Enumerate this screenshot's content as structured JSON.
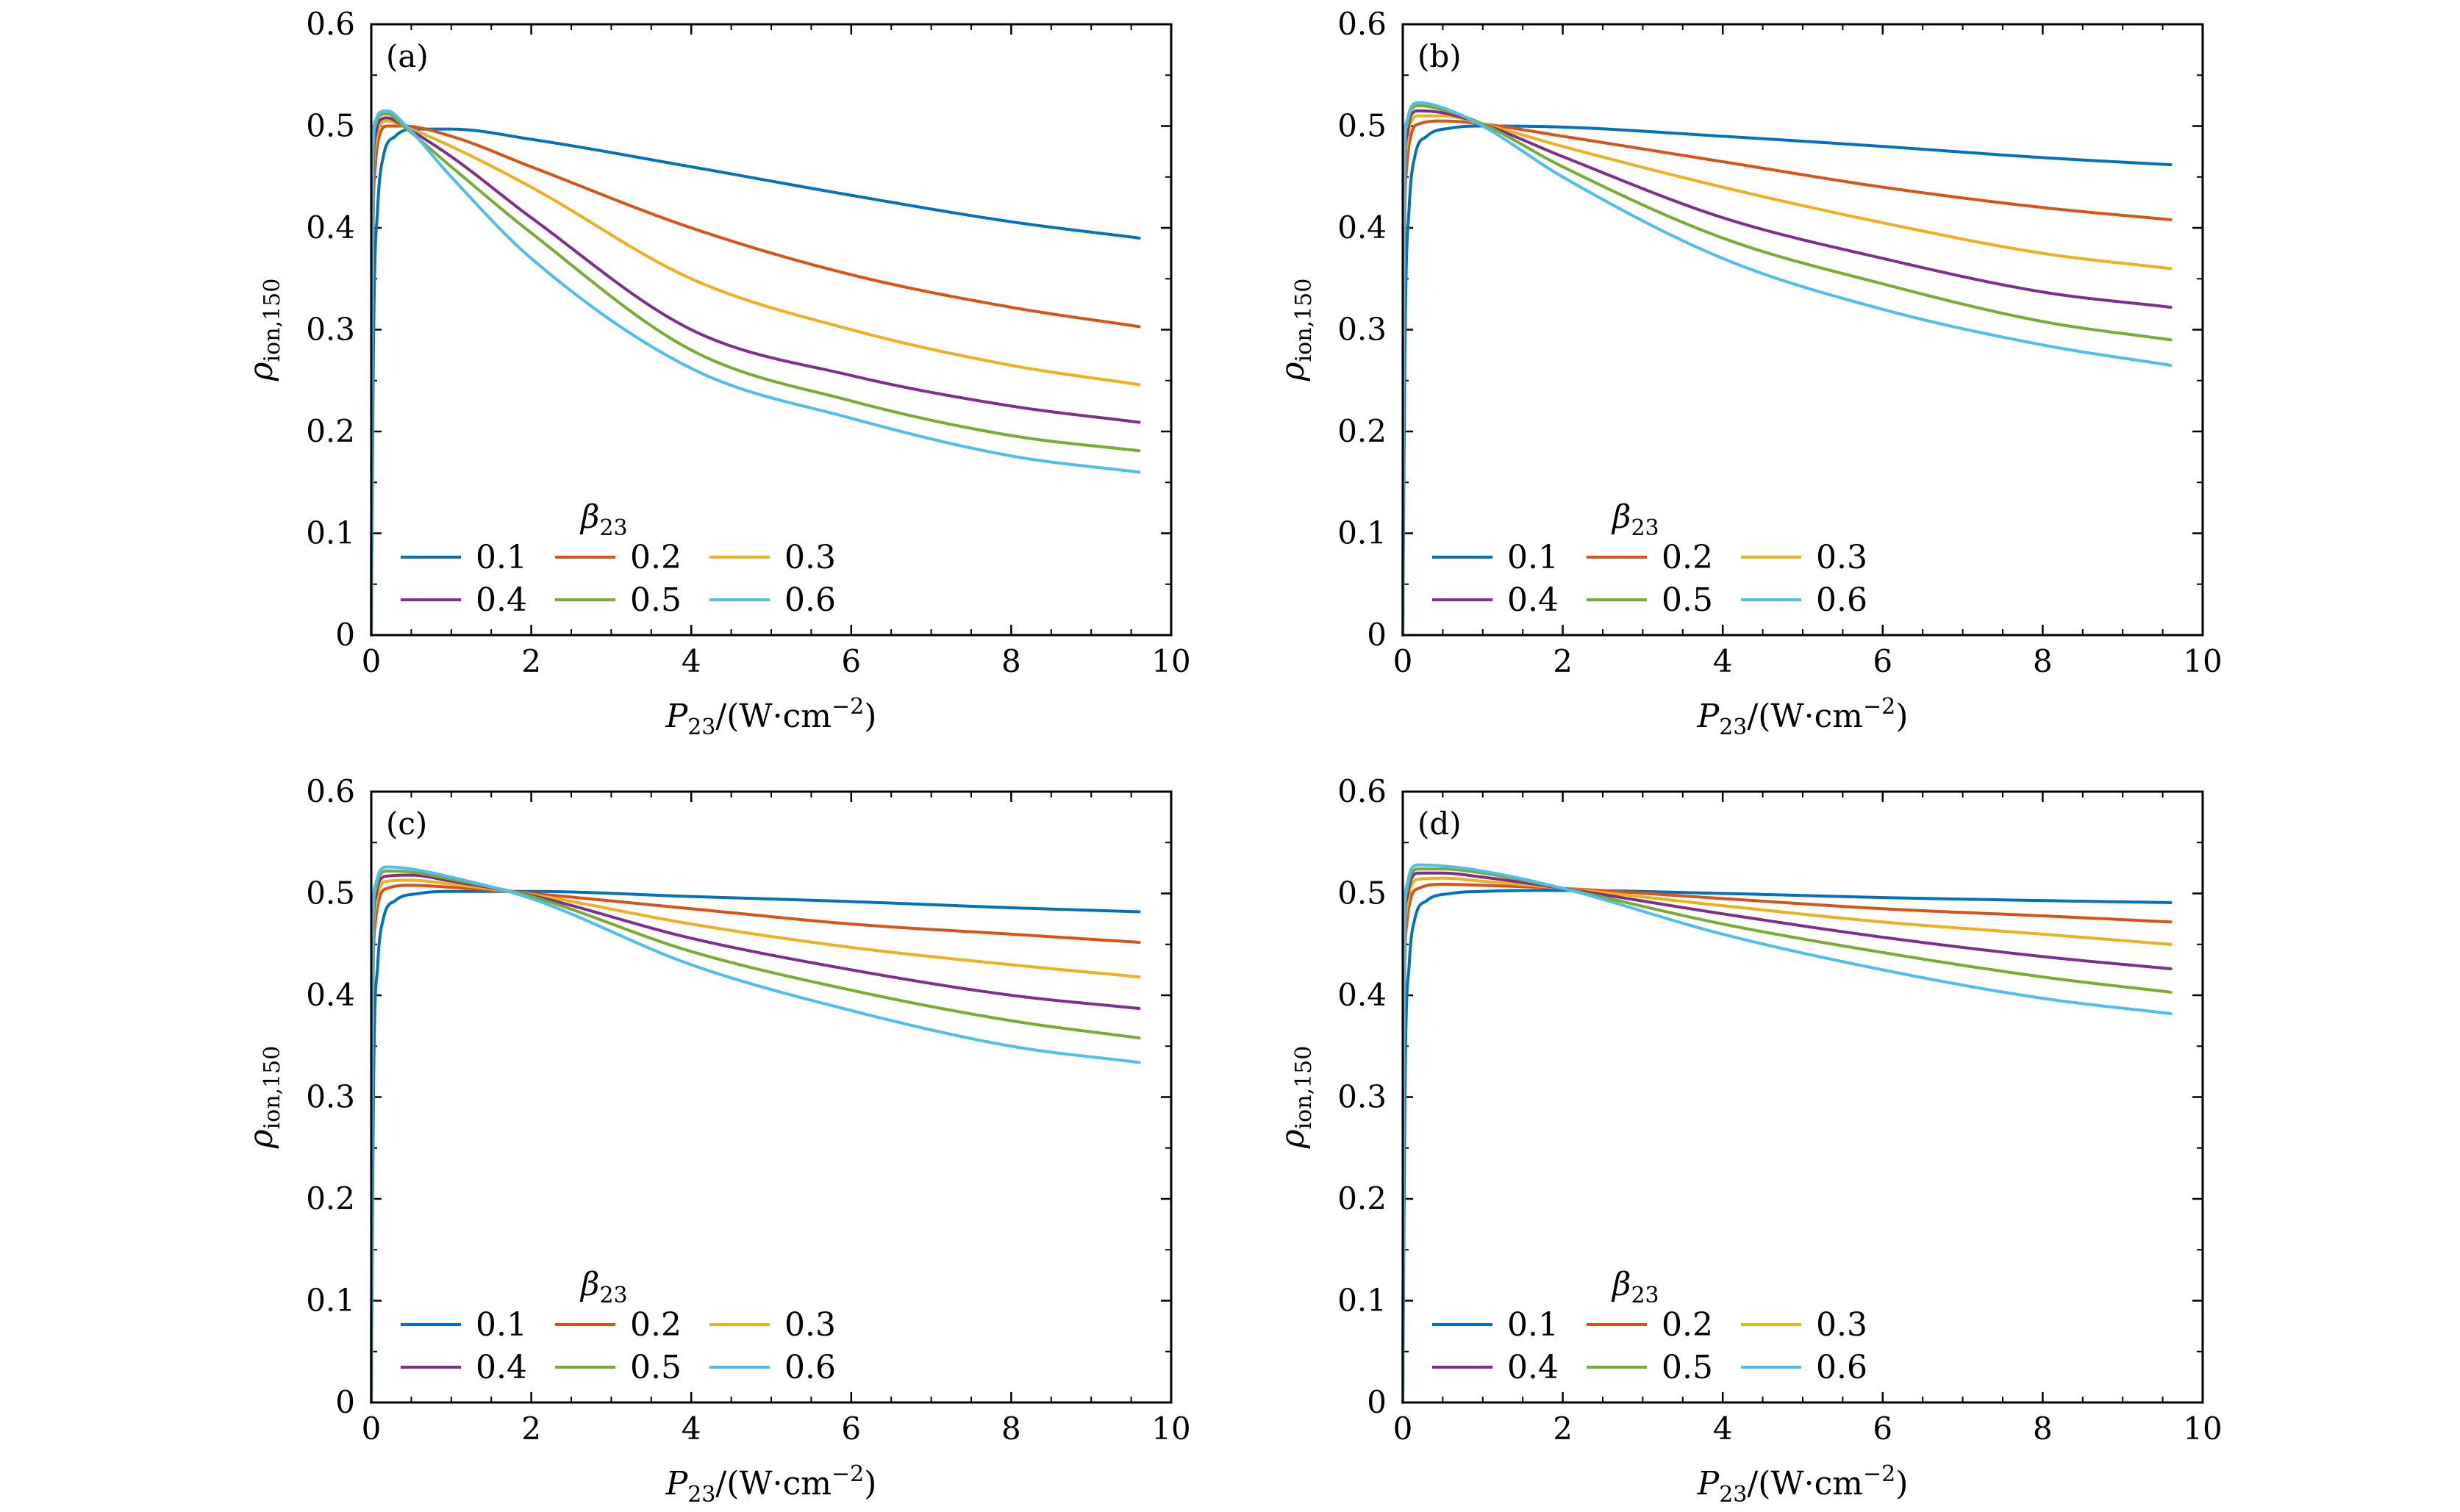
{
  "chart_data": [
    {
      "type": "line",
      "panel_label": "(a)",
      "xlabel": {
        "main": "P",
        "sub": "23",
        "rest": "/(W·cm",
        "sup": "−2",
        "close": ")"
      },
      "ylabel": {
        "main": "ρ",
        "sub": "ion,150"
      },
      "xlim": [
        0,
        10
      ],
      "ylim": [
        0,
        0.6
      ],
      "xticks": [
        0,
        2,
        4,
        6,
        8,
        10
      ],
      "xtick_labels": [
        "0",
        "2",
        "4",
        "6",
        "8",
        "10"
      ],
      "yticks": [
        0,
        0.1,
        0.2,
        0.3,
        0.4,
        0.5,
        0.6
      ],
      "ytick_labels": [
        "0",
        "0.1",
        "0.2",
        "0.3",
        "0.4",
        "0.5",
        "0.6"
      ],
      "legend": {
        "title": "β23",
        "placement": "lower-left"
      },
      "series": [
        {
          "name": "0.1",
          "color": "#0072BD",
          "x": [
            0,
            0.03,
            0.08,
            0.15,
            0.3,
            0.5,
            1,
            2,
            4,
            6,
            8,
            9.6
          ],
          "y": [
            0,
            0.3,
            0.42,
            0.47,
            0.49,
            0.497,
            0.497,
            0.487,
            0.46,
            0.432,
            0.406,
            0.39
          ]
        },
        {
          "name": "0.2",
          "color": "#D95319",
          "x": [
            0,
            0.02,
            0.05,
            0.1,
            0.2,
            0.4,
            1,
            2,
            4,
            6,
            8,
            9.6
          ],
          "y": [
            0,
            0.38,
            0.46,
            0.49,
            0.5,
            0.5,
            0.49,
            0.46,
            0.4,
            0.354,
            0.322,
            0.303
          ]
        },
        {
          "name": "0.3",
          "color": "#EDB120",
          "x": [
            0,
            0.02,
            0.05,
            0.1,
            0.2,
            0.4,
            1,
            2,
            4,
            6,
            8,
            9.6
          ],
          "y": [
            0,
            0.42,
            0.48,
            0.5,
            0.505,
            0.5,
            0.48,
            0.44,
            0.35,
            0.3,
            0.265,
            0.246
          ]
        },
        {
          "name": "0.4",
          "color": "#7E2F8E",
          "x": [
            0,
            0.02,
            0.05,
            0.1,
            0.2,
            0.4,
            1,
            2,
            4,
            6,
            8,
            9.6
          ],
          "y": [
            0,
            0.44,
            0.49,
            0.505,
            0.508,
            0.5,
            0.47,
            0.41,
            0.3,
            0.255,
            0.225,
            0.209
          ]
        },
        {
          "name": "0.5",
          "color": "#77AC30",
          "x": [
            0,
            0.02,
            0.05,
            0.1,
            0.2,
            0.4,
            1,
            2,
            4,
            6,
            8,
            9.6
          ],
          "y": [
            0,
            0.46,
            0.5,
            0.51,
            0.512,
            0.5,
            0.46,
            0.395,
            0.28,
            0.23,
            0.196,
            0.181
          ]
        },
        {
          "name": "0.6",
          "color": "#4DBEEE",
          "x": [
            0,
            0.02,
            0.05,
            0.1,
            0.2,
            0.4,
            1,
            2,
            4,
            6,
            8,
            9.6
          ],
          "y": [
            0,
            0.47,
            0.505,
            0.513,
            0.515,
            0.503,
            0.45,
            0.37,
            0.262,
            0.213,
            0.176,
            0.16
          ]
        }
      ]
    },
    {
      "type": "line",
      "panel_label": "(b)",
      "xlabel": {
        "main": "P",
        "sub": "23",
        "rest": "/(W·cm",
        "sup": "−2",
        "close": ")"
      },
      "ylabel": {
        "main": "ρ",
        "sub": "ion,150"
      },
      "xlim": [
        0,
        10
      ],
      "ylim": [
        0,
        0.6
      ],
      "xticks": [
        0,
        2,
        4,
        6,
        8,
        10
      ],
      "xtick_labels": [
        "0",
        "2",
        "4",
        "6",
        "8",
        "10"
      ],
      "yticks": [
        0,
        0.1,
        0.2,
        0.3,
        0.4,
        0.5,
        0.6
      ],
      "ytick_labels": [
        "0",
        "0.1",
        "0.2",
        "0.3",
        "0.4",
        "0.5",
        "0.6"
      ],
      "legend": {
        "title": "β23",
        "placement": "lower-left"
      },
      "series": [
        {
          "name": "0.1",
          "color": "#0072BD",
          "x": [
            0,
            0.03,
            0.08,
            0.15,
            0.3,
            0.6,
            1,
            2,
            4,
            6,
            8,
            9.6
          ],
          "y": [
            0,
            0.3,
            0.42,
            0.47,
            0.49,
            0.498,
            0.5,
            0.499,
            0.49,
            0.48,
            0.469,
            0.462
          ]
        },
        {
          "name": "0.2",
          "color": "#D95319",
          "x": [
            0,
            0.02,
            0.05,
            0.1,
            0.2,
            0.5,
            1,
            2,
            4,
            6,
            8,
            9.6
          ],
          "y": [
            0,
            0.38,
            0.46,
            0.49,
            0.502,
            0.505,
            0.502,
            0.49,
            0.465,
            0.44,
            0.42,
            0.408
          ]
        },
        {
          "name": "0.3",
          "color": "#EDB120",
          "x": [
            0,
            0.02,
            0.05,
            0.1,
            0.2,
            0.5,
            1,
            2,
            4,
            6,
            8,
            9.6
          ],
          "y": [
            0,
            0.42,
            0.48,
            0.503,
            0.51,
            0.51,
            0.502,
            0.48,
            0.44,
            0.405,
            0.375,
            0.36
          ]
        },
        {
          "name": "0.4",
          "color": "#7E2F8E",
          "x": [
            0,
            0.02,
            0.05,
            0.1,
            0.2,
            0.5,
            1,
            2,
            4,
            6,
            8,
            9.6
          ],
          "y": [
            0,
            0.44,
            0.49,
            0.51,
            0.515,
            0.513,
            0.502,
            0.47,
            0.41,
            0.37,
            0.337,
            0.322
          ]
        },
        {
          "name": "0.5",
          "color": "#77AC30",
          "x": [
            0,
            0.02,
            0.05,
            0.1,
            0.2,
            0.5,
            1,
            2,
            4,
            6,
            8,
            9.6
          ],
          "y": [
            0,
            0.46,
            0.5,
            0.515,
            0.52,
            0.516,
            0.502,
            0.46,
            0.39,
            0.345,
            0.308,
            0.29
          ]
        },
        {
          "name": "0.6",
          "color": "#4DBEEE",
          "x": [
            0,
            0.02,
            0.05,
            0.1,
            0.2,
            0.5,
            1,
            2,
            4,
            6,
            8,
            9.6
          ],
          "y": [
            0,
            0.47,
            0.505,
            0.518,
            0.523,
            0.518,
            0.5,
            0.45,
            0.37,
            0.32,
            0.285,
            0.265
          ]
        }
      ]
    },
    {
      "type": "line",
      "panel_label": "(c)",
      "xlabel": {
        "main": "P",
        "sub": "23",
        "rest": "/(W·cm",
        "sup": "−2",
        "close": ")"
      },
      "ylabel": {
        "main": "ρ",
        "sub": "ion,150"
      },
      "xlim": [
        0,
        10
      ],
      "ylim": [
        0,
        0.6
      ],
      "xticks": [
        0,
        2,
        4,
        6,
        8,
        10
      ],
      "xtick_labels": [
        "0",
        "2",
        "4",
        "6",
        "8",
        "10"
      ],
      "yticks": [
        0,
        0.1,
        0.2,
        0.3,
        0.4,
        0.5,
        0.6
      ],
      "ytick_labels": [
        "0",
        "0.1",
        "0.2",
        "0.3",
        "0.4",
        "0.5",
        "0.6"
      ],
      "legend": {
        "title": "β23",
        "placement": "lower-left"
      },
      "series": [
        {
          "name": "0.1",
          "color": "#0072BD",
          "x": [
            0,
            0.03,
            0.08,
            0.15,
            0.3,
            0.6,
            1,
            2,
            4,
            6,
            8,
            9.6
          ],
          "y": [
            0,
            0.32,
            0.43,
            0.475,
            0.493,
            0.5,
            0.502,
            0.502,
            0.497,
            0.492,
            0.486,
            0.482
          ]
        },
        {
          "name": "0.2",
          "color": "#D95319",
          "x": [
            0,
            0.02,
            0.05,
            0.1,
            0.2,
            0.5,
            1,
            2,
            4,
            6,
            8,
            9.6
          ],
          "y": [
            0,
            0.4,
            0.47,
            0.495,
            0.505,
            0.508,
            0.506,
            0.5,
            0.485,
            0.47,
            0.46,
            0.452
          ]
        },
        {
          "name": "0.3",
          "color": "#EDB120",
          "x": [
            0,
            0.02,
            0.05,
            0.1,
            0.2,
            0.5,
            1,
            2,
            4,
            6,
            8,
            9.6
          ],
          "y": [
            0,
            0.43,
            0.485,
            0.505,
            0.512,
            0.513,
            0.509,
            0.499,
            0.47,
            0.447,
            0.43,
            0.418
          ]
        },
        {
          "name": "0.4",
          "color": "#7E2F8E",
          "x": [
            0,
            0.02,
            0.05,
            0.1,
            0.2,
            0.5,
            1,
            2,
            4,
            6,
            8,
            9.6
          ],
          "y": [
            0,
            0.45,
            0.495,
            0.512,
            0.517,
            0.518,
            0.512,
            0.498,
            0.456,
            0.425,
            0.4,
            0.387
          ]
        },
        {
          "name": "0.5",
          "color": "#77AC30",
          "x": [
            0,
            0.02,
            0.05,
            0.1,
            0.2,
            0.5,
            1,
            2,
            4,
            6,
            8,
            9.6
          ],
          "y": [
            0,
            0.46,
            0.502,
            0.517,
            0.522,
            0.521,
            0.514,
            0.497,
            0.443,
            0.405,
            0.375,
            0.358
          ]
        },
        {
          "name": "0.6",
          "color": "#4DBEEE",
          "x": [
            0,
            0.02,
            0.05,
            0.1,
            0.2,
            0.5,
            1,
            2,
            4,
            6,
            8,
            9.6
          ],
          "y": [
            0,
            0.47,
            0.508,
            0.521,
            0.526,
            0.524,
            0.516,
            0.495,
            0.43,
            0.385,
            0.35,
            0.334
          ]
        }
      ]
    },
    {
      "type": "line",
      "panel_label": "(d)",
      "xlabel": {
        "main": "P",
        "sub": "23",
        "rest": "/(W·cm",
        "sup": "−2",
        "close": ")"
      },
      "ylabel": {
        "main": "ρ",
        "sub": "ion,150"
      },
      "xlim": [
        0,
        10
      ],
      "ylim": [
        0,
        0.6
      ],
      "xticks": [
        0,
        2,
        4,
        6,
        8,
        10
      ],
      "xtick_labels": [
        "0",
        "2",
        "4",
        "6",
        "8",
        "10"
      ],
      "yticks": [
        0,
        0.1,
        0.2,
        0.3,
        0.4,
        0.5,
        0.6
      ],
      "ytick_labels": [
        "0",
        "0.1",
        "0.2",
        "0.3",
        "0.4",
        "0.5",
        "0.6"
      ],
      "legend": {
        "title": "β23",
        "placement": "lower-left"
      },
      "series": [
        {
          "name": "0.1",
          "color": "#0072BD",
          "x": [
            0,
            0.03,
            0.08,
            0.15,
            0.3,
            0.6,
            1,
            2,
            4,
            6,
            8,
            9.6
          ],
          "y": [
            0,
            0.32,
            0.43,
            0.475,
            0.493,
            0.5,
            0.502,
            0.503,
            0.5,
            0.496,
            0.493,
            0.491
          ]
        },
        {
          "name": "0.2",
          "color": "#D95319",
          "x": [
            0,
            0.02,
            0.05,
            0.1,
            0.2,
            0.5,
            1,
            2,
            4,
            6,
            8,
            9.6
          ],
          "y": [
            0,
            0.4,
            0.47,
            0.495,
            0.505,
            0.509,
            0.508,
            0.505,
            0.495,
            0.485,
            0.478,
            0.472
          ]
        },
        {
          "name": "0.3",
          "color": "#EDB120",
          "x": [
            0,
            0.02,
            0.05,
            0.1,
            0.2,
            0.5,
            1,
            2,
            4,
            6,
            8,
            9.6
          ],
          "y": [
            0,
            0.43,
            0.485,
            0.506,
            0.514,
            0.515,
            0.512,
            0.505,
            0.488,
            0.472,
            0.46,
            0.45
          ]
        },
        {
          "name": "0.4",
          "color": "#7E2F8E",
          "x": [
            0,
            0.02,
            0.05,
            0.1,
            0.2,
            0.5,
            1,
            2,
            4,
            6,
            8,
            9.6
          ],
          "y": [
            0,
            0.45,
            0.495,
            0.513,
            0.52,
            0.52,
            0.516,
            0.505,
            0.48,
            0.457,
            0.438,
            0.426
          ]
        },
        {
          "name": "0.5",
          "color": "#77AC30",
          "x": [
            0,
            0.02,
            0.05,
            0.1,
            0.2,
            0.5,
            1,
            2,
            4,
            6,
            8,
            9.6
          ],
          "y": [
            0,
            0.46,
            0.502,
            0.518,
            0.524,
            0.524,
            0.52,
            0.505,
            0.47,
            0.442,
            0.418,
            0.403
          ]
        },
        {
          "name": "0.6",
          "color": "#4DBEEE",
          "x": [
            0,
            0.02,
            0.05,
            0.1,
            0.2,
            0.5,
            1,
            2,
            4,
            6,
            8,
            9.6
          ],
          "y": [
            0,
            0.47,
            0.508,
            0.523,
            0.528,
            0.527,
            0.522,
            0.505,
            0.46,
            0.425,
            0.397,
            0.382
          ]
        }
      ]
    }
  ]
}
